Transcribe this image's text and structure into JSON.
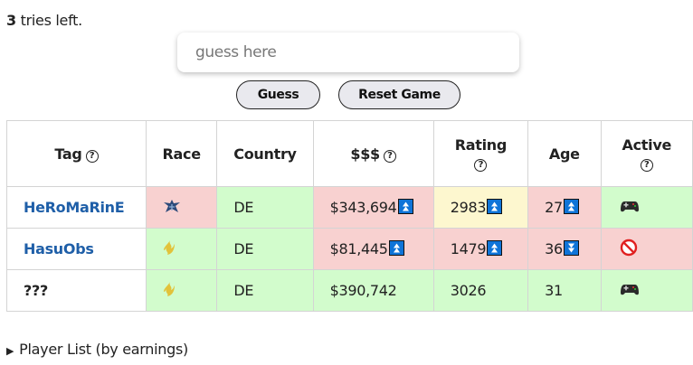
{
  "status": {
    "tries_count": "3",
    "tries_text": " tries left."
  },
  "guess": {
    "placeholder": "guess here",
    "value": "",
    "guess_label": "Guess",
    "reset_label": "Reset Game"
  },
  "table": {
    "headers": [
      "Tag",
      "Race",
      "Country",
      "$$$",
      "Rating",
      "Age",
      "Active"
    ],
    "help_glyph": "?",
    "rows": [
      {
        "tag": "HeRoMaRinE",
        "race": "terran",
        "country": "DE",
        "earnings": "$343,694",
        "earnings_hint": "up",
        "rating": "2983",
        "rating_hint": "up",
        "age": "27",
        "age_hint": "up",
        "active": "controller",
        "colors": {
          "race": "#f8d1d0",
          "country": "#d2fccc",
          "earnings": "#f8d1d0",
          "rating": "#fdf7cf",
          "age": "#f8d1d0",
          "active": "#d2fccc"
        }
      },
      {
        "tag": "HasuObs",
        "race": "protoss",
        "country": "DE",
        "earnings": "$81,445",
        "earnings_hint": "up",
        "rating": "1479",
        "rating_hint": "up",
        "age": "36",
        "age_hint": "down",
        "active": "prohibited",
        "colors": {
          "race": "#d2fccc",
          "country": "#d2fccc",
          "earnings": "#f8d1d0",
          "rating": "#f8d1d0",
          "age": "#f8d1d0",
          "active": "#f8d1d0"
        }
      },
      {
        "tag": "???",
        "race": "protoss",
        "country": "DE",
        "earnings": "$390,742",
        "rating": "3026",
        "age": "31",
        "active": "controller",
        "colors": {
          "race": "#d2fccc",
          "country": "#d2fccc",
          "earnings": "#d2fccc",
          "rating": "#d2fccc",
          "age": "#d2fccc",
          "active": "#d2fccc"
        }
      }
    ]
  },
  "player_list": {
    "label": "Player List (by earnings)"
  }
}
